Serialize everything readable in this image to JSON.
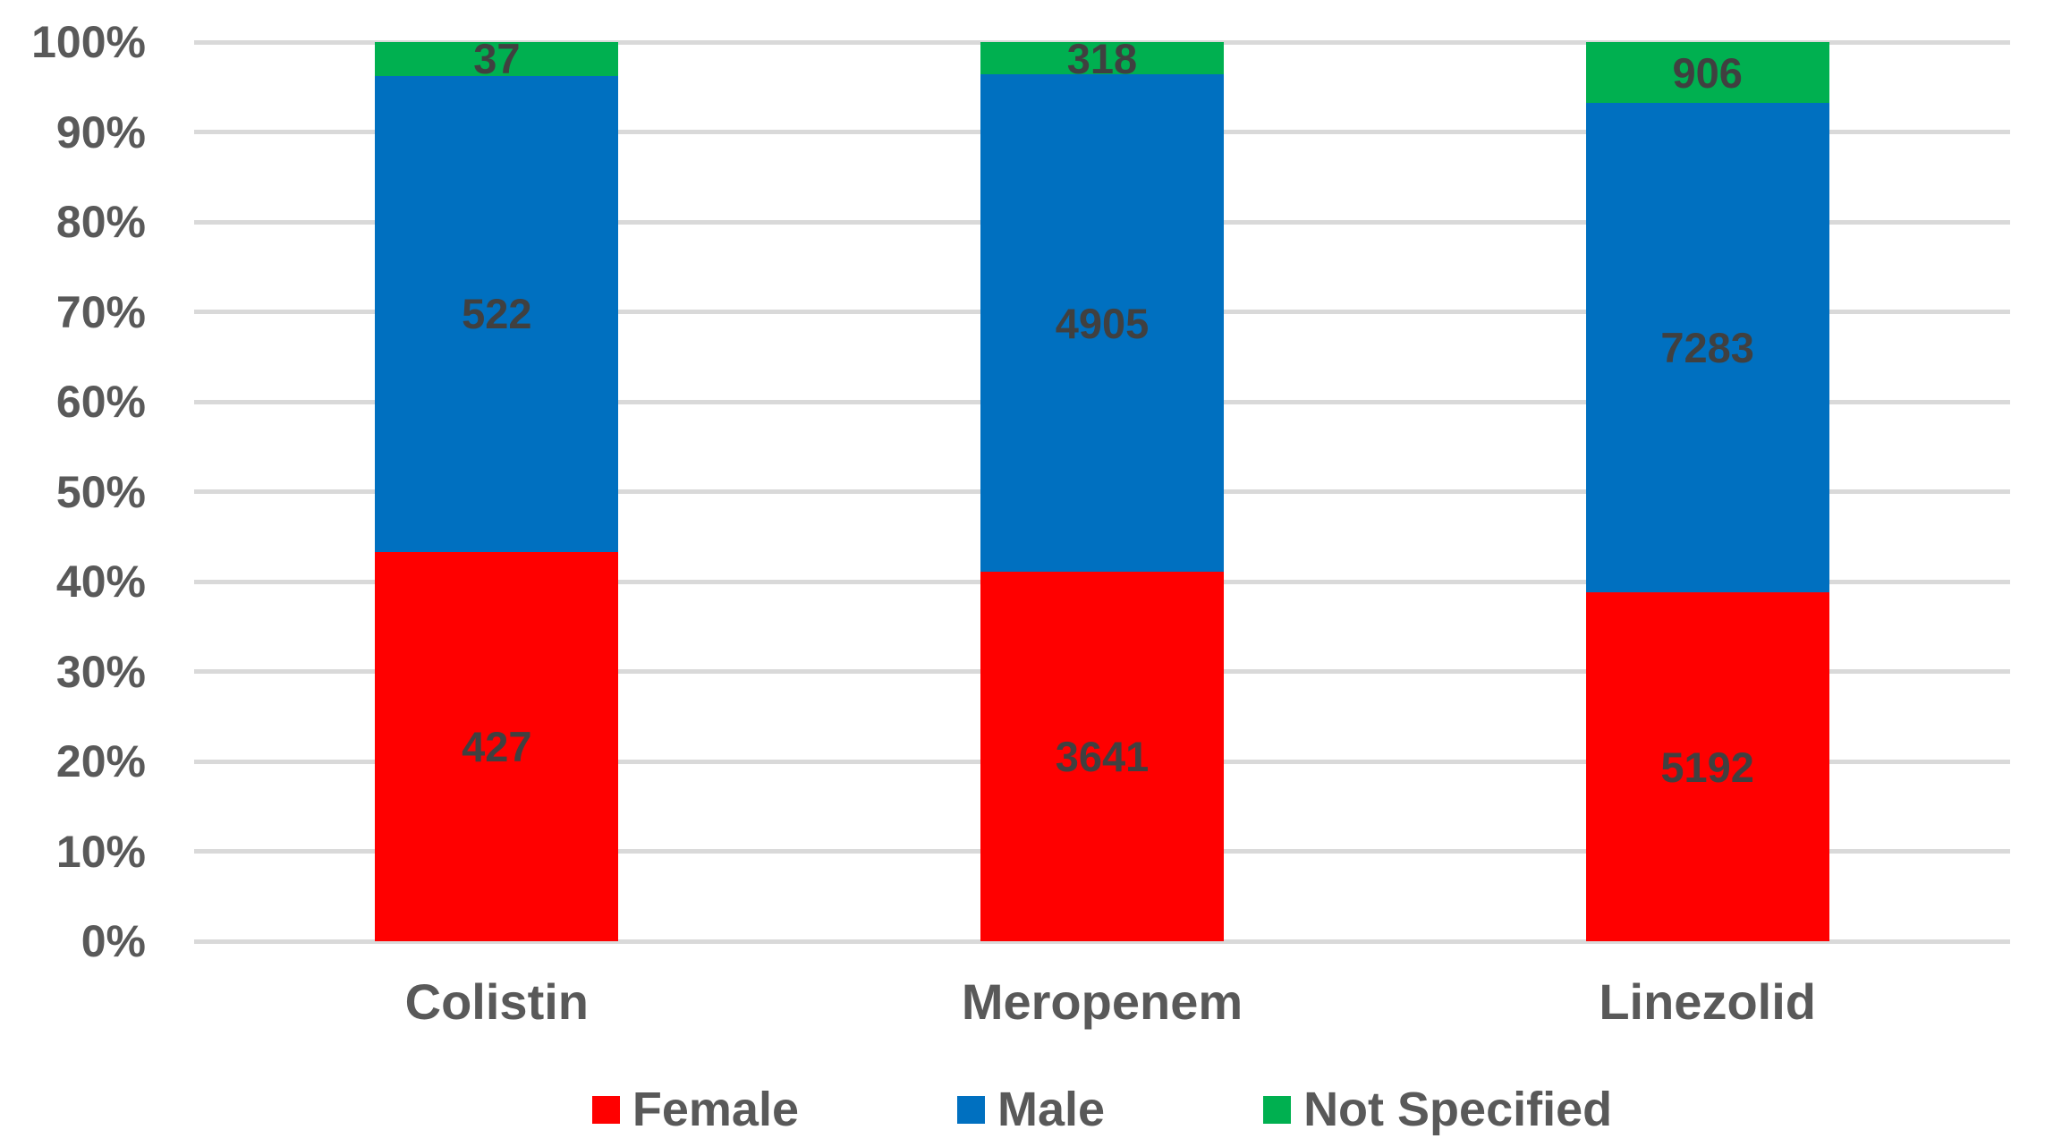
{
  "chart_data": {
    "type": "bar",
    "subtype": "stacked-100-percent",
    "title": "",
    "xlabel": "",
    "ylabel": "",
    "categories": [
      "Colistin",
      "Meropenem",
      "Linezolid"
    ],
    "series": [
      {
        "name": "Female",
        "color": "#FF0000",
        "values": [
          427,
          3641,
          5192
        ]
      },
      {
        "name": "Male",
        "color": "#0070C0",
        "values": [
          522,
          4905,
          7283
        ]
      },
      {
        "name": "Not Specified",
        "color": "#00B050",
        "values": [
          37,
          318,
          906
        ]
      }
    ],
    "stack_order_top_to_bottom": [
      "Not Specified",
      "Male",
      "Female"
    ],
    "y_axis": {
      "min": 0,
      "max": 100,
      "step": 10,
      "format": "percent",
      "ticks": [
        "0%",
        "10%",
        "20%",
        "30%",
        "40%",
        "50%",
        "60%",
        "70%",
        "80%",
        "90%",
        "100%"
      ]
    },
    "grid": true,
    "legend_position": "bottom",
    "colors": {
      "gridline": "#D9D9D9",
      "axis_text": "#595959",
      "data_label": "#404040",
      "background": "#FFFFFF"
    }
  }
}
